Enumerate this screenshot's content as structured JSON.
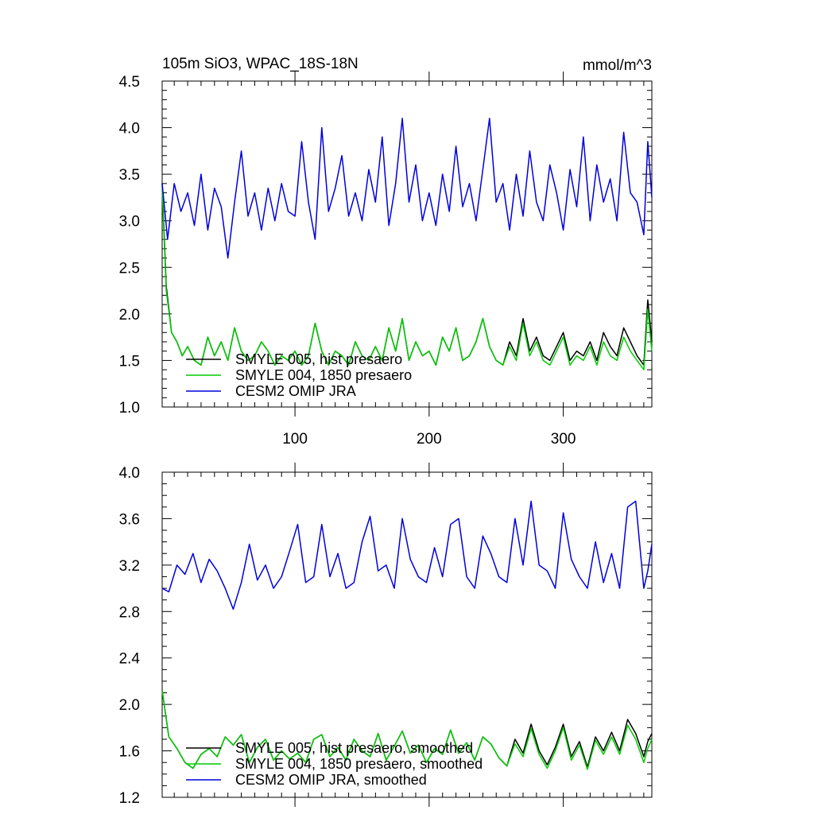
{
  "chart_data": [
    {
      "type": "line",
      "title": "105m SiO3, WPAC_18S-18N",
      "units": "mmol/m^3",
      "xlim": [
        1,
        366
      ],
      "ylim": [
        1.0,
        4.5
      ],
      "xticks": [
        "100",
        "200",
        "300"
      ],
      "yticks": [
        "1.0",
        "1.5",
        "2.0",
        "2.5",
        "3.0",
        "3.5",
        "4.0",
        "4.5"
      ],
      "legend_position": "lower-left",
      "series": [
        {
          "name": "SMYLE 005, hist presaero",
          "color": "#000000",
          "x": [
            1,
            4,
            8,
            12,
            16,
            20,
            25,
            30,
            35,
            40,
            45,
            50,
            55,
            60,
            65,
            70,
            75,
            80,
            85,
            90,
            95,
            100,
            105,
            110,
            115,
            120,
            125,
            130,
            135,
            140,
            145,
            150,
            155,
            160,
            165,
            170,
            175,
            180,
            185,
            190,
            195,
            200,
            205,
            210,
            215,
            220,
            225,
            230,
            235,
            240,
            245,
            250,
            255,
            260,
            265,
            270,
            275,
            280,
            285,
            290,
            295,
            300,
            305,
            310,
            315,
            320,
            325,
            330,
            335,
            340,
            345,
            350,
            355,
            360,
            363,
            366
          ],
          "values": [
            3.4,
            2.3,
            1.8,
            1.7,
            1.55,
            1.65,
            1.5,
            1.45,
            1.75,
            1.55,
            1.7,
            1.5,
            1.85,
            1.6,
            1.5,
            1.55,
            1.7,
            1.6,
            1.45,
            1.55,
            1.5,
            1.6,
            1.45,
            1.55,
            1.9,
            1.6,
            1.45,
            1.6,
            1.55,
            1.45,
            1.7,
            1.55,
            1.5,
            1.65,
            1.5,
            1.85,
            1.6,
            1.95,
            1.5,
            1.7,
            1.55,
            1.6,
            1.45,
            1.75,
            1.6,
            1.85,
            1.5,
            1.55,
            1.7,
            1.95,
            1.65,
            1.5,
            1.45,
            1.7,
            1.55,
            1.95,
            1.6,
            1.75,
            1.55,
            1.5,
            1.65,
            1.8,
            1.5,
            1.6,
            1.55,
            1.7,
            1.5,
            1.8,
            1.65,
            1.55,
            1.85,
            1.7,
            1.55,
            1.45,
            2.15,
            1.7
          ]
        },
        {
          "name": "SMYLE 004, 1850 presaero",
          "color": "#00cc00",
          "x": [
            1,
            4,
            8,
            12,
            16,
            20,
            25,
            30,
            35,
            40,
            45,
            50,
            55,
            60,
            65,
            70,
            75,
            80,
            85,
            90,
            95,
            100,
            105,
            110,
            115,
            120,
            125,
            130,
            135,
            140,
            145,
            150,
            155,
            160,
            165,
            170,
            175,
            180,
            185,
            190,
            195,
            200,
            205,
            210,
            215,
            220,
            225,
            230,
            235,
            240,
            245,
            250,
            255,
            260,
            265,
            270,
            275,
            280,
            285,
            290,
            295,
            300,
            305,
            310,
            315,
            320,
            325,
            330,
            335,
            340,
            345,
            350,
            355,
            360,
            363,
            366
          ],
          "values": [
            3.35,
            2.25,
            1.8,
            1.7,
            1.55,
            1.65,
            1.5,
            1.45,
            1.75,
            1.55,
            1.7,
            1.5,
            1.85,
            1.6,
            1.5,
            1.55,
            1.7,
            1.6,
            1.45,
            1.55,
            1.5,
            1.6,
            1.45,
            1.55,
            1.9,
            1.6,
            1.45,
            1.6,
            1.55,
            1.45,
            1.7,
            1.55,
            1.5,
            1.65,
            1.5,
            1.85,
            1.6,
            1.95,
            1.5,
            1.7,
            1.55,
            1.6,
            1.45,
            1.75,
            1.6,
            1.85,
            1.5,
            1.55,
            1.7,
            1.95,
            1.65,
            1.5,
            1.45,
            1.65,
            1.5,
            1.9,
            1.55,
            1.7,
            1.5,
            1.45,
            1.6,
            1.75,
            1.45,
            1.55,
            1.5,
            1.65,
            1.45,
            1.7,
            1.55,
            1.5,
            1.75,
            1.6,
            1.5,
            1.4,
            2.05,
            1.6
          ]
        },
        {
          "name": "CESM2 OMIP JRA",
          "color": "#0000dd",
          "x": [
            1,
            5,
            10,
            15,
            20,
            25,
            30,
            35,
            40,
            45,
            50,
            55,
            60,
            65,
            70,
            75,
            80,
            85,
            90,
            95,
            100,
            105,
            110,
            115,
            120,
            125,
            130,
            135,
            140,
            145,
            150,
            155,
            160,
            165,
            170,
            175,
            180,
            185,
            190,
            195,
            200,
            205,
            210,
            215,
            220,
            225,
            230,
            235,
            240,
            245,
            250,
            255,
            260,
            265,
            270,
            275,
            280,
            285,
            290,
            295,
            300,
            305,
            310,
            315,
            320,
            325,
            330,
            335,
            340,
            345,
            350,
            355,
            360,
            363,
            366
          ],
          "values": [
            3.4,
            2.8,
            3.4,
            3.1,
            3.3,
            2.95,
            3.5,
            2.9,
            3.35,
            3.15,
            2.6,
            3.2,
            3.75,
            3.05,
            3.3,
            2.9,
            3.35,
            3.0,
            3.4,
            3.1,
            3.05,
            3.85,
            3.2,
            2.8,
            4.0,
            3.1,
            3.35,
            3.7,
            3.05,
            3.3,
            3.0,
            3.55,
            3.2,
            3.9,
            2.95,
            3.4,
            4.1,
            3.2,
            3.6,
            3.0,
            3.3,
            2.95,
            3.5,
            3.1,
            3.8,
            3.15,
            3.4,
            3.0,
            3.55,
            4.1,
            3.2,
            3.4,
            2.9,
            3.5,
            3.05,
            3.75,
            3.2,
            3.0,
            3.6,
            3.3,
            2.9,
            3.55,
            3.15,
            3.9,
            3.0,
            3.6,
            3.2,
            3.45,
            3.0,
            3.95,
            3.3,
            3.2,
            2.85,
            3.85,
            3.25
          ]
        }
      ]
    },
    {
      "type": "line",
      "title": "",
      "xlim": [
        1,
        366
      ],
      "ylim": [
        1.2,
        4.0
      ],
      "xticks": [],
      "yticks": [
        "1.2",
        "1.6",
        "2.0",
        "2.4",
        "2.8",
        "3.2",
        "3.6",
        "4.0"
      ],
      "legend_position": "lower-left",
      "series": [
        {
          "name": "SMYLE 005, hist presaero, smoothed",
          "color": "#000000",
          "x": [
            1,
            6,
            12,
            18,
            24,
            30,
            36,
            42,
            48,
            54,
            60,
            66,
            72,
            78,
            84,
            90,
            96,
            102,
            108,
            114,
            120,
            126,
            132,
            138,
            144,
            150,
            156,
            162,
            168,
            174,
            180,
            186,
            192,
            198,
            204,
            210,
            216,
            222,
            228,
            234,
            240,
            246,
            252,
            258,
            264,
            270,
            276,
            282,
            288,
            294,
            300,
            306,
            312,
            318,
            324,
            330,
            336,
            342,
            348,
            354,
            360,
            363,
            366
          ],
          "values": [
            2.12,
            1.72,
            1.62,
            1.5,
            1.45,
            1.57,
            1.62,
            1.55,
            1.72,
            1.65,
            1.74,
            1.5,
            1.63,
            1.7,
            1.52,
            1.6,
            1.53,
            1.58,
            1.5,
            1.7,
            1.74,
            1.55,
            1.63,
            1.52,
            1.7,
            1.6,
            1.55,
            1.75,
            1.52,
            1.64,
            1.77,
            1.58,
            1.65,
            1.5,
            1.62,
            1.57,
            1.78,
            1.58,
            1.67,
            1.52,
            1.72,
            1.66,
            1.54,
            1.47,
            1.7,
            1.58,
            1.83,
            1.6,
            1.48,
            1.63,
            1.83,
            1.55,
            1.68,
            1.46,
            1.72,
            1.6,
            1.76,
            1.6,
            1.87,
            1.75,
            1.55,
            1.68,
            1.75
          ]
        },
        {
          "name": "SMYLE 004, 1850 presaero, smoothed",
          "color": "#00cc00",
          "x": [
            1,
            6,
            12,
            18,
            24,
            30,
            36,
            42,
            48,
            54,
            60,
            66,
            72,
            78,
            84,
            90,
            96,
            102,
            108,
            114,
            120,
            126,
            132,
            138,
            144,
            150,
            156,
            162,
            168,
            174,
            180,
            186,
            192,
            198,
            204,
            210,
            216,
            222,
            228,
            234,
            240,
            246,
            252,
            258,
            264,
            270,
            276,
            282,
            288,
            294,
            300,
            306,
            312,
            318,
            324,
            330,
            336,
            342,
            348,
            354,
            360,
            363,
            366
          ],
          "values": [
            2.12,
            1.72,
            1.62,
            1.5,
            1.45,
            1.57,
            1.62,
            1.55,
            1.72,
            1.65,
            1.74,
            1.5,
            1.63,
            1.7,
            1.52,
            1.6,
            1.53,
            1.58,
            1.5,
            1.7,
            1.74,
            1.55,
            1.63,
            1.52,
            1.7,
            1.6,
            1.55,
            1.75,
            1.52,
            1.64,
            1.77,
            1.58,
            1.65,
            1.5,
            1.62,
            1.57,
            1.78,
            1.58,
            1.67,
            1.52,
            1.72,
            1.66,
            1.54,
            1.47,
            1.66,
            1.55,
            1.79,
            1.57,
            1.45,
            1.6,
            1.8,
            1.52,
            1.65,
            1.44,
            1.69,
            1.57,
            1.72,
            1.57,
            1.82,
            1.7,
            1.5,
            1.62,
            1.7
          ]
        },
        {
          "name": "CESM2 OMIP JRA, smoothed",
          "color": "#0000dd",
          "x": [
            1,
            6,
            12,
            18,
            24,
            30,
            36,
            42,
            48,
            54,
            60,
            66,
            72,
            78,
            84,
            90,
            96,
            102,
            108,
            114,
            120,
            126,
            132,
            138,
            144,
            150,
            156,
            162,
            168,
            174,
            180,
            186,
            192,
            198,
            204,
            210,
            216,
            222,
            228,
            234,
            240,
            246,
            252,
            258,
            264,
            270,
            276,
            282,
            288,
            294,
            300,
            306,
            312,
            318,
            324,
            330,
            336,
            342,
            348,
            354,
            360,
            363,
            366
          ],
          "values": [
            3.0,
            2.97,
            3.2,
            3.12,
            3.3,
            3.05,
            3.25,
            3.15,
            3.0,
            2.82,
            3.05,
            3.38,
            3.07,
            3.2,
            3.0,
            3.1,
            3.32,
            3.55,
            3.05,
            3.1,
            3.55,
            3.1,
            3.3,
            3.0,
            3.05,
            3.4,
            3.62,
            3.15,
            3.2,
            3.0,
            3.6,
            3.25,
            3.1,
            3.05,
            3.35,
            3.1,
            3.55,
            3.6,
            3.1,
            3.0,
            3.45,
            3.3,
            3.1,
            3.05,
            3.6,
            3.2,
            3.75,
            3.2,
            3.15,
            3.0,
            3.65,
            3.25,
            3.1,
            3.0,
            3.4,
            3.05,
            3.3,
            3.0,
            3.7,
            3.75,
            3.0,
            3.15,
            3.38
          ]
        }
      ]
    }
  ]
}
